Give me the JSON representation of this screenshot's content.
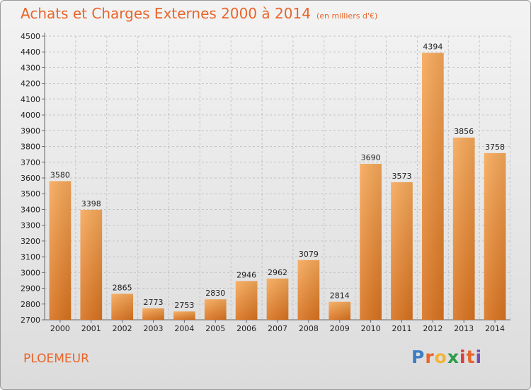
{
  "header": {
    "title": "Achats et Charges Externes 2000 à 2014",
    "unit": "(en milliers d'€)"
  },
  "footer": {
    "city": "PLOEMEUR",
    "logo": "Proxiti",
    "logo_colors": [
      "#3a7fc6",
      "#e8652a",
      "#f2b43a",
      "#2c9b4a",
      "#d93c3c",
      "#e8652a",
      "#7a4db0"
    ]
  },
  "colors": {
    "bar_top": "#f7a95a",
    "bar_bottom": "#d9731f",
    "title": "#e8652a"
  },
  "chart_data": {
    "type": "bar",
    "title": "Achats et Charges Externes 2000 à 2014",
    "subtitle": "(en milliers d'€)",
    "categories": [
      "2000",
      "2001",
      "2002",
      "2003",
      "2004",
      "2005",
      "2006",
      "2007",
      "2008",
      "2009",
      "2010",
      "2011",
      "2012",
      "2013",
      "2014"
    ],
    "values": [
      3580,
      3398,
      2865,
      2773,
      2753,
      2830,
      2946,
      2962,
      3079,
      2814,
      3690,
      3573,
      4394,
      3856,
      3758
    ],
    "ylim": [
      2700,
      4500
    ],
    "yticks": [
      2700,
      2800,
      2900,
      3000,
      3100,
      3200,
      3300,
      3400,
      3500,
      3600,
      3700,
      3800,
      3900,
      4000,
      4100,
      4200,
      4300,
      4400,
      4500
    ],
    "grid": true,
    "legend": "none"
  }
}
